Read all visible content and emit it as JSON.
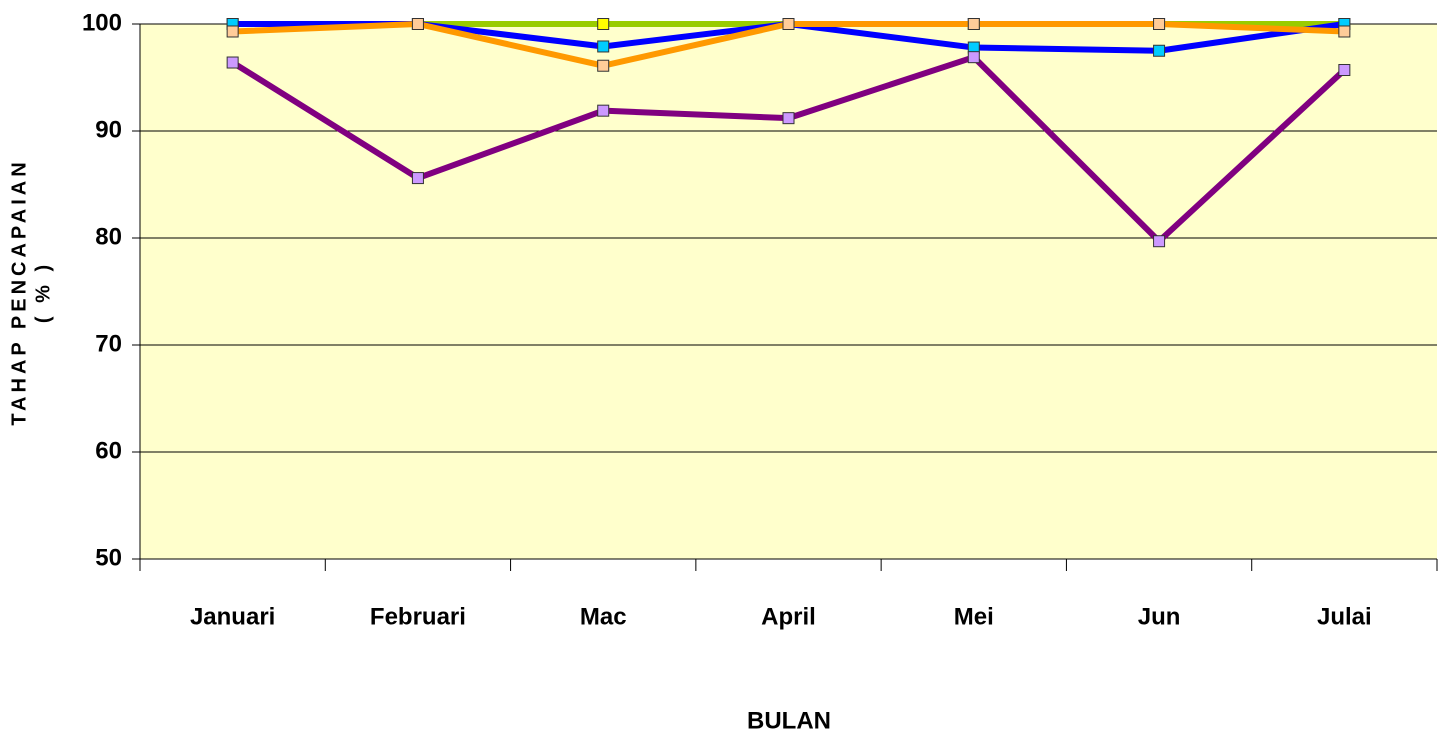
{
  "chart_data": {
    "type": "line",
    "xlabel": "BULAN",
    "ylabel": [
      "TAHAP PENCAPAIAN",
      "( % )"
    ],
    "categories": [
      "Januari",
      "Februari",
      "Mac",
      "April",
      "Mei",
      "Jun",
      "Julai"
    ],
    "series": [
      {
        "color": "#99cc00",
        "marker_color": "#ffff00",
        "values": [
          100,
          100,
          100,
          100,
          100,
          100,
          100
        ]
      },
      {
        "color": "#0000ff",
        "marker_color": "#00ccff",
        "values": [
          100,
          100,
          97.9,
          100,
          97.8,
          97.5,
          100
        ]
      },
      {
        "color": "#ff9900",
        "marker_color": "#ffcc99",
        "values": [
          99.3,
          100,
          96.1,
          100,
          100,
          100,
          99.3
        ]
      },
      {
        "color": "#800080",
        "marker_color": "#cc99ff",
        "values": [
          96.4,
          85.6,
          91.9,
          91.2,
          96.9,
          79.7,
          95.7
        ]
      }
    ],
    "ylim": [
      50,
      100
    ],
    "yticks": [
      50,
      60,
      70,
      80,
      90,
      100
    ],
    "grid": true,
    "plot_background": "#ffffcc"
  }
}
